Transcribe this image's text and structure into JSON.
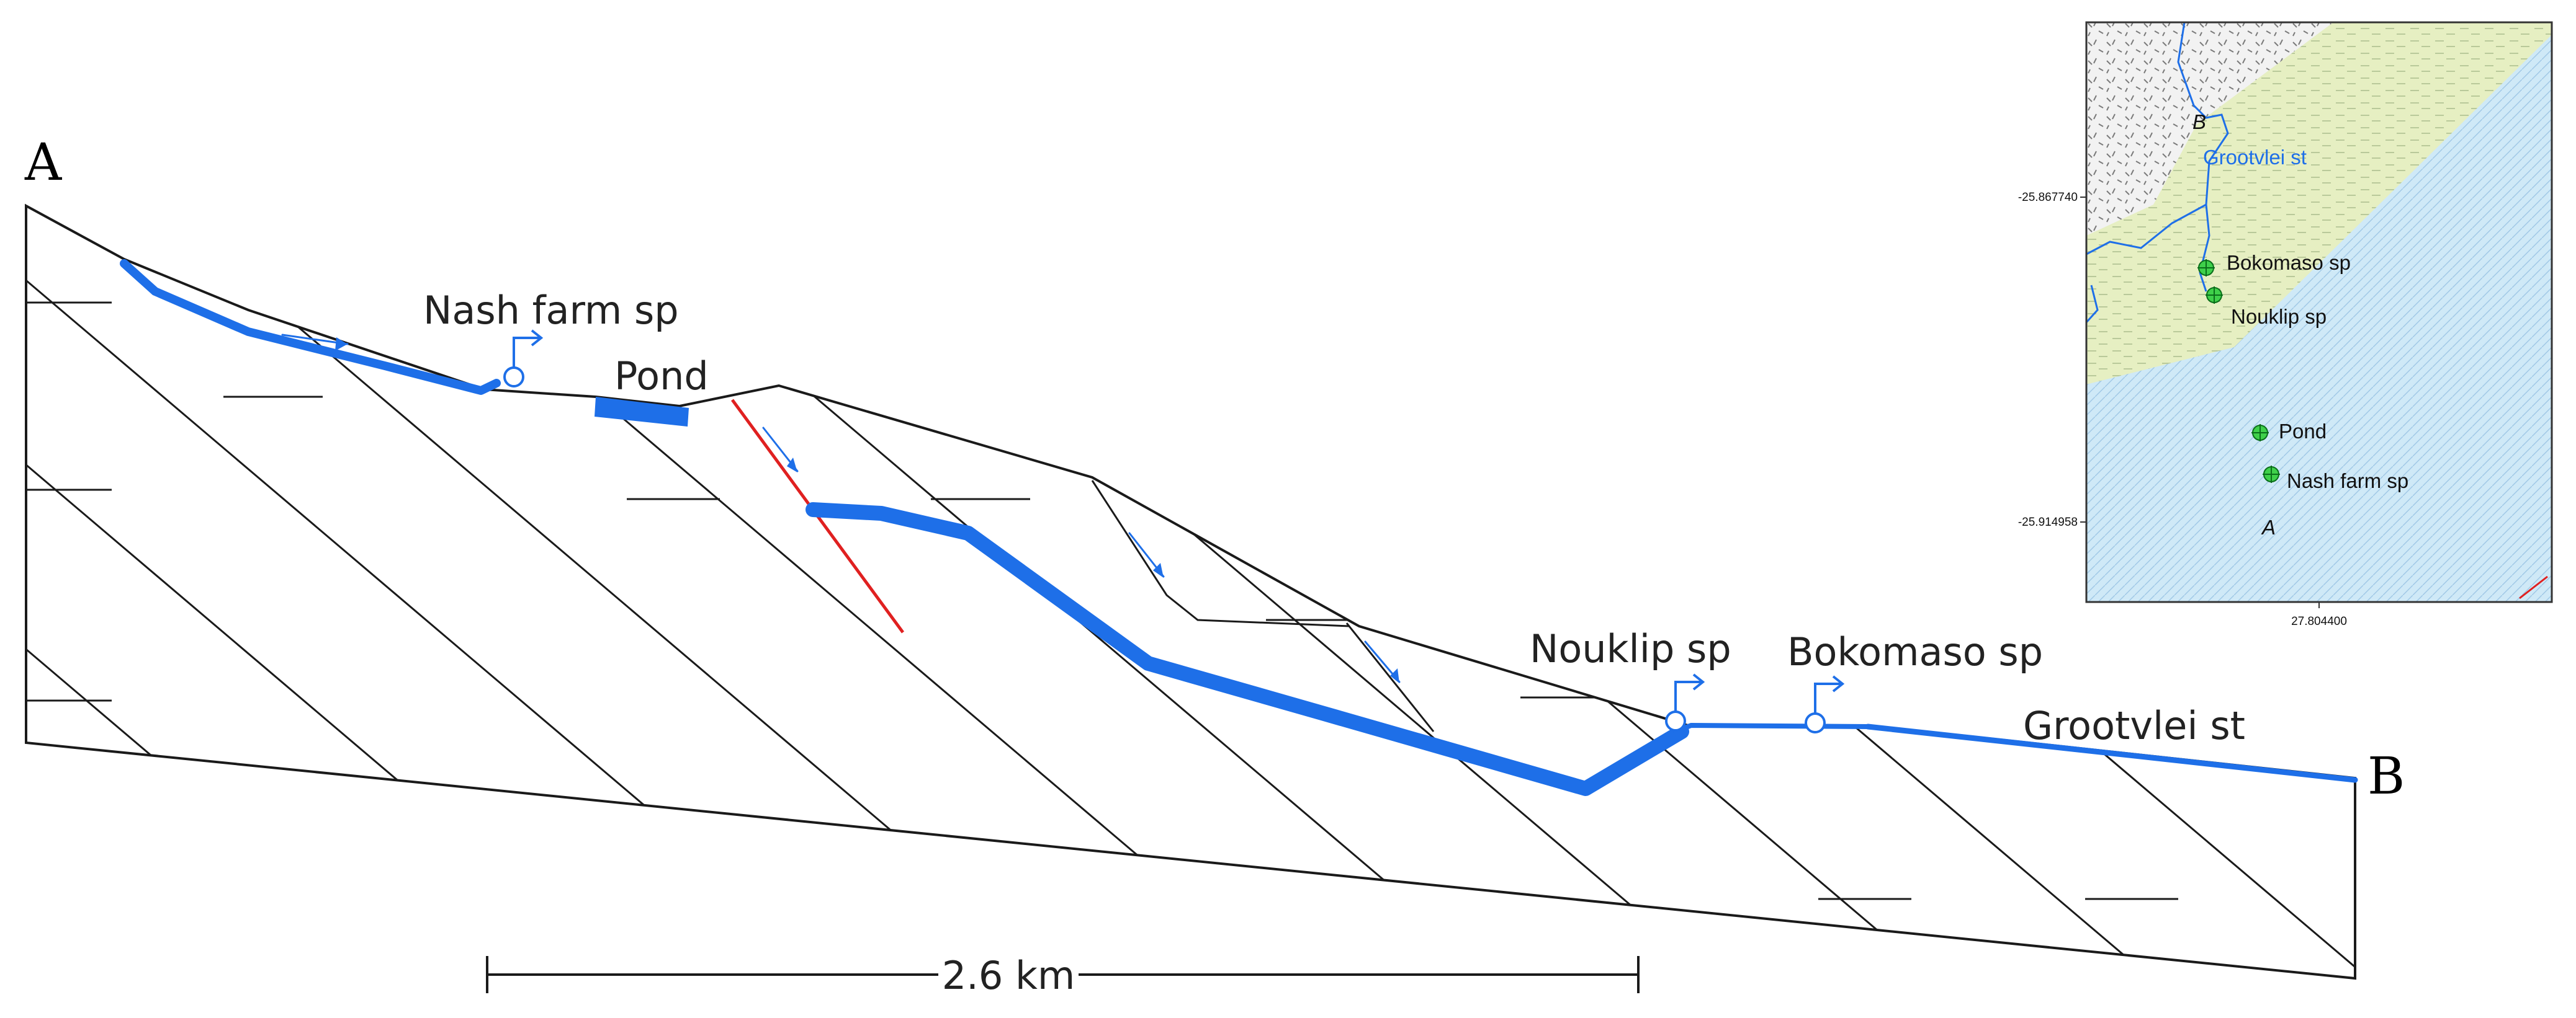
{
  "section": {
    "start_label": "A",
    "end_label": "B",
    "features": {
      "nash_farm": "Nash farm sp",
      "pond": "Pond",
      "nouklip": "Nouklip sp",
      "bokomaso": "Bokomaso sp",
      "grootvlei": "Grootvlei st"
    },
    "scale_bar": "2.6 km"
  },
  "inset_map": {
    "labels": {
      "b": "B",
      "a": "A",
      "grootvlei": "Grootvlei st",
      "bokomaso": "Bokomaso sp",
      "nouklip": "Nouklip sp",
      "pond": "Pond",
      "nash_farm": "Nash farm sp"
    },
    "coords": {
      "lat_top": "-25.867740",
      "lat_bottom": "-25.914958",
      "lon": "27.804400"
    }
  },
  "colors": {
    "water": "#1e6fe8",
    "fault": "#e02020",
    "outline": "#1a1a1a",
    "map_water": "#cfe9f7",
    "map_veld": "#e6efc2"
  }
}
